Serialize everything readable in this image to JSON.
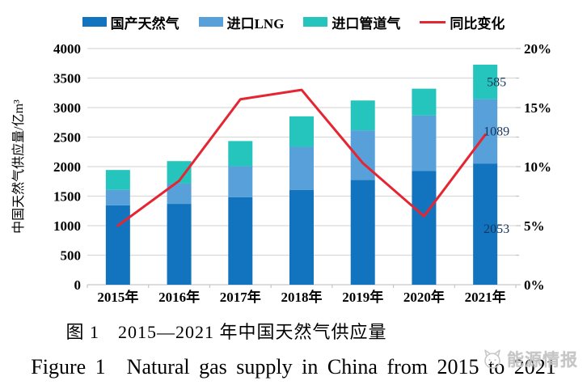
{
  "legend": {
    "items": [
      {
        "label": "国产天然气",
        "type": "bar",
        "color": "#1274BE"
      },
      {
        "label": "进口LNG",
        "type": "bar",
        "color": "#57A0D9"
      },
      {
        "label": "进口管道气",
        "type": "bar",
        "color": "#25C4BC"
      },
      {
        "label": "同比变化",
        "type": "line",
        "color": "#E52532"
      }
    ]
  },
  "chart_data": {
    "type": "bar",
    "subtype": "stacked-bars-with-line",
    "categories": [
      "2015年",
      "2016年",
      "2017年",
      "2018年",
      "2019年",
      "2020年",
      "2021年"
    ],
    "series": [
      {
        "name": "国产天然气",
        "type": "bar",
        "color": "#1274BE",
        "values": [
          1346,
          1369,
          1480,
          1603,
          1773,
          1925,
          2053
        ]
      },
      {
        "name": "进口LNG",
        "type": "bar",
        "color": "#57A0D9",
        "values": [
          261,
          344,
          526,
          732,
          842,
          940,
          1089
        ]
      },
      {
        "name": "进口管道气",
        "type": "bar",
        "color": "#25C4BC",
        "values": [
          336,
          380,
          427,
          517,
          505,
          455,
          585
        ]
      },
      {
        "name": "同比变化",
        "type": "line",
        "color": "#E52532",
        "axis": "right",
        "values_percent": [
          5.0,
          8.8,
          15.7,
          16.5,
          10.3,
          5.8,
          12.7
        ]
      }
    ],
    "data_labels": {
      "category": "2021年",
      "labels": [
        "2053",
        "1089",
        "585"
      ],
      "color": "#16365C"
    },
    "ylabel_left": "中国天然气供应量/亿m³",
    "left_ticks": [
      "0",
      "500",
      "1000",
      "1500",
      "2000",
      "2500",
      "3000",
      "3500",
      "4000"
    ],
    "right_ticks": [
      "0%",
      "5%",
      "10%",
      "15%",
      "20%"
    ],
    "ylim_left": [
      0,
      4000
    ],
    "ylim_right_percent": [
      0,
      20
    ],
    "grid": true,
    "gridline_color": "#D9D9D9",
    "legend_position": "top"
  },
  "captions": {
    "zh": "图 1　2015—2021 年中国天然气供应量",
    "en": "Figure 1　Natural gas supply in China from 2015 to 2021"
  },
  "watermark": {
    "text": "能源情报"
  }
}
